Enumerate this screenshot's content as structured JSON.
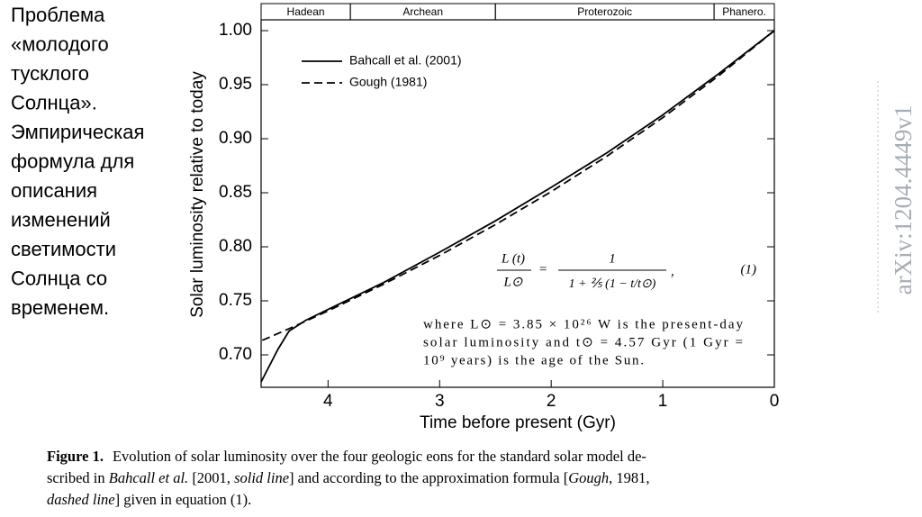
{
  "slide_text": [
    "Проблема",
    "«молодого",
    "тусклого",
    "Солнца».",
    "Эмпирическая",
    "формула для",
    "описания",
    "изменений",
    "светимости",
    "Солнца со",
    "временем."
  ],
  "chart_data": {
    "type": "line",
    "x": [
      0,
      0.5,
      1,
      1.5,
      2,
      2.5,
      3,
      3.5,
      4,
      4.2,
      4.35,
      4.45,
      4.5,
      4.6
    ],
    "series": [
      {
        "name": "Bahcall et al. (2001)",
        "color": "#000000",
        "dash": "solid",
        "values": [
          1.0,
          0.96,
          0.922,
          0.887,
          0.855,
          0.824,
          0.795,
          0.767,
          0.742,
          0.732,
          0.722,
          0.705,
          0.695,
          0.675
        ]
      },
      {
        "name": "Gough (1981)",
        "color": "#000000",
        "dash": "dashed",
        "values": [
          1.0,
          0.9581,
          0.9195,
          0.8839,
          0.851,
          0.8205,
          0.792,
          0.7655,
          0.7407,
          0.7312,
          0.7242,
          0.7197,
          0.7174,
          0.713
        ]
      }
    ],
    "xlim": [
      4.6,
      0
    ],
    "ylim": [
      0.67,
      1.01
    ],
    "xticks": [
      4,
      3,
      2,
      1,
      0
    ],
    "yticks": [
      {
        "value": 0.7,
        "label": "0.70"
      },
      0.75,
      {
        "value": 0.8,
        "label": "0.80"
      },
      0.85,
      {
        "value": 0.9,
        "label": "0.90"
      },
      0.95,
      {
        "value": 1.0,
        "label": "1.00"
      }
    ],
    "xlabel": "Time before present  (Gyr)",
    "ylabel": "Solar luminosity relative to today",
    "eons": [
      {
        "name": "Hadean",
        "start": 4.6,
        "end": 3.8
      },
      {
        "name": "Archean",
        "start": 3.8,
        "end": 2.5
      },
      {
        "name": "Proterozoic",
        "start": 2.5,
        "end": 0.54
      },
      {
        "name": "Phanero.",
        "start": 0.54,
        "end": 0
      }
    ],
    "formula": {
      "lhs_num": "L (t)",
      "lhs_den": "L⊙",
      "equals": "=",
      "rhs_num": "1",
      "rhs_den": "1 + ⅖ (1 − t/t⊙)",
      "comma": ",",
      "number": "(1)"
    },
    "note": [
      "where L⊙ = 3.85 × 10²⁶ W is the present-day",
      "solar luminosity and t⊙ = 4.57 Gyr (1 Gyr =",
      "10⁹ years) is the age of the Sun."
    ]
  },
  "caption": {
    "label": "Figure 1.",
    "line1": "Evolution of solar luminosity over the four geologic eons for the standard solar model de-",
    "line2": [
      "scribed in ",
      "Bahcall et al.",
      " [2001, ",
      "solid line",
      "] and according to the approximation formula [",
      "Gough",
      ", 1981,"
    ],
    "line3": [
      "dashed line",
      "] given in equation (1)."
    ]
  },
  "watermark": "arXiv:1204.4449v1"
}
